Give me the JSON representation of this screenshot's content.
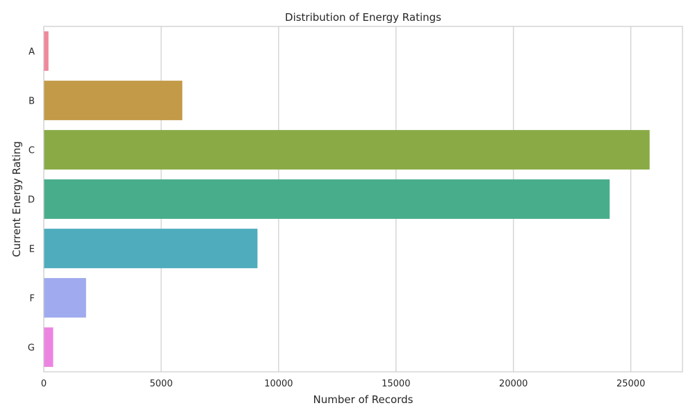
{
  "chart_data": {
    "type": "bar",
    "orientation": "horizontal",
    "title": "Distribution of Energy Ratings",
    "xlabel": "Number of Records",
    "ylabel": "Current Energy Rating",
    "categories": [
      "A",
      "B",
      "C",
      "D",
      "E",
      "F",
      "G"
    ],
    "values": [
      200,
      5900,
      25800,
      24100,
      9100,
      1800,
      400
    ],
    "colors": [
      "#f0879b",
      "#c39a47",
      "#89aa45",
      "#48ad8b",
      "#4eacbd",
      "#a0aaee",
      "#ec84e2"
    ],
    "xlim": [
      0,
      27200
    ],
    "x_ticks": [
      0,
      5000,
      10000,
      15000,
      20000,
      25000
    ],
    "x_tick_labels": [
      "0",
      "5000",
      "10000",
      "15000",
      "20000",
      "25000"
    ],
    "grid": "vertical",
    "legend": "none"
  }
}
